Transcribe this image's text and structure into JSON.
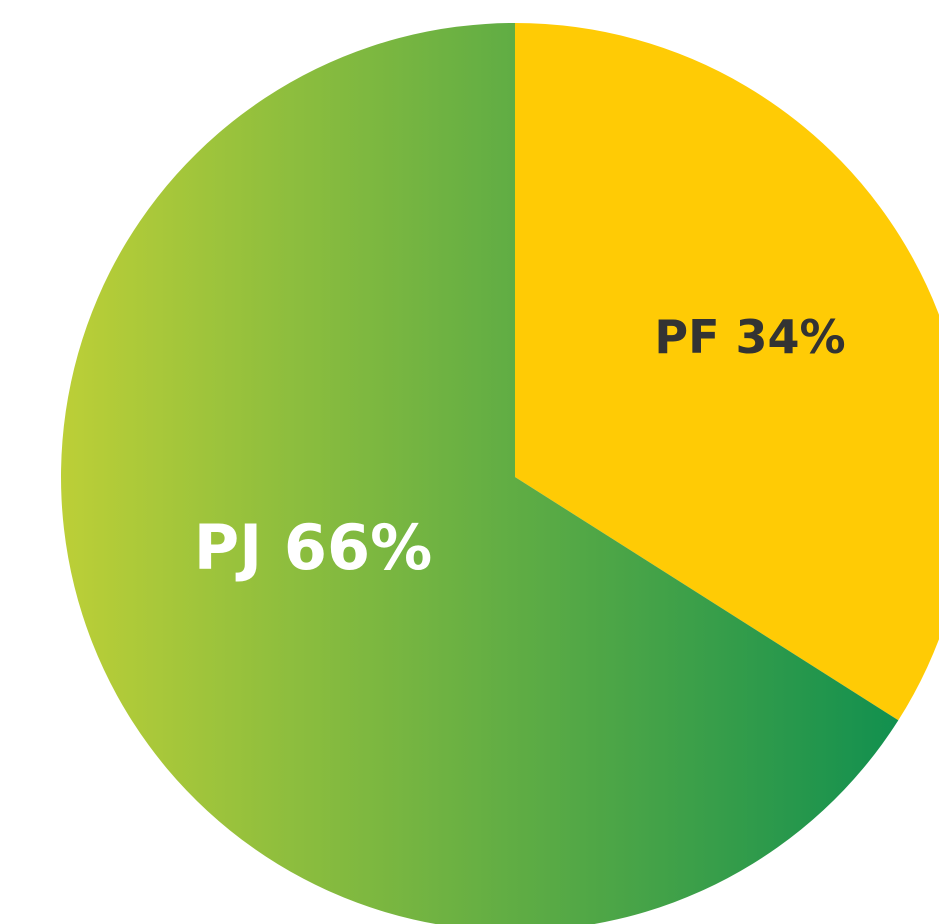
{
  "chart_data": {
    "type": "pie",
    "categories": [
      "PF",
      "PJ"
    ],
    "values": [
      34,
      66
    ],
    "value_labels": [
      "34%",
      "66%"
    ],
    "colors": [
      "#ffcb05",
      {
        "gradient": [
          "#bccf37",
          "#12904f"
        ]
      }
    ],
    "label_colors": [
      "#333333",
      "#ffffff"
    ]
  }
}
